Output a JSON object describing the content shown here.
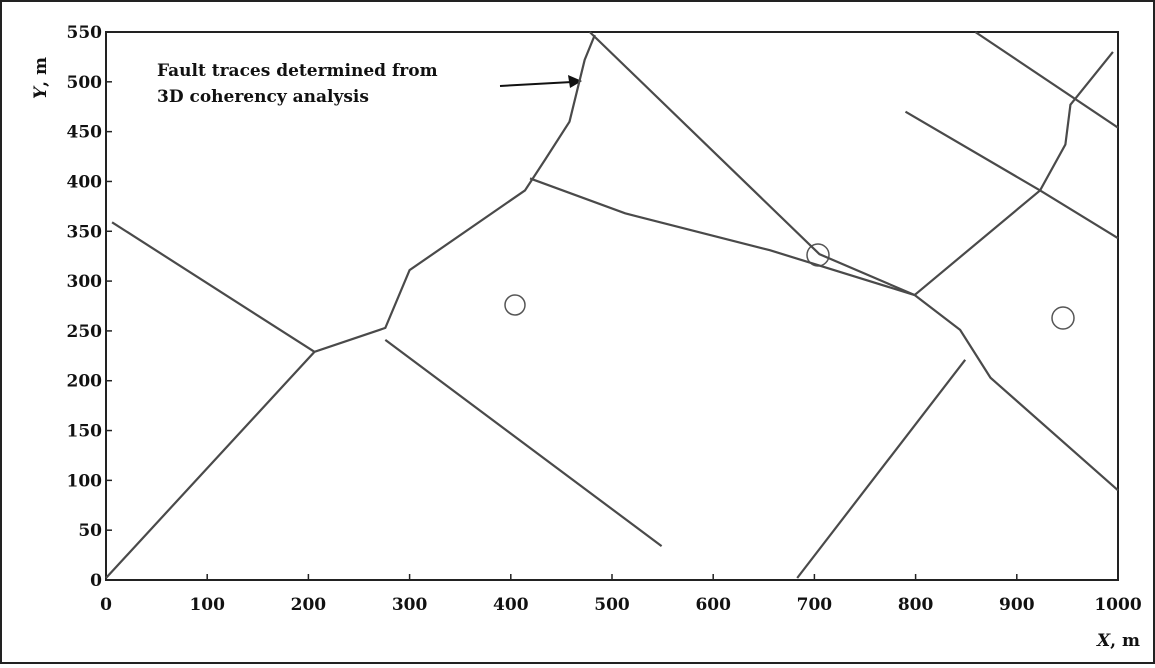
{
  "chart_data": {
    "type": "line",
    "annotation": [
      "Fault traces determined from",
      "3D coherency analysis"
    ],
    "xlabel": {
      "var": "X",
      "unit": ", m"
    },
    "ylabel": {
      "var": "Y",
      "unit": ", m"
    },
    "xlim": [
      0,
      1000
    ],
    "ylim": [
      0,
      550
    ],
    "xticks": [
      0,
      100,
      200,
      300,
      400,
      500,
      600,
      700,
      800,
      900,
      1000
    ],
    "yticks": [
      0,
      50,
      100,
      150,
      200,
      250,
      300,
      350,
      400,
      450,
      500,
      550
    ],
    "color": "#4a4a4a",
    "series": [
      {
        "x": [
          0,
          206,
          276,
          300,
          414,
          434,
          458,
          473,
          483
        ],
        "y": [
          2,
          229,
          253,
          311,
          391,
          422,
          460,
          522,
          547
        ]
      },
      {
        "x": [
          6,
          206
        ],
        "y": [
          359,
          229
        ]
      },
      {
        "x": [
          276,
          549
        ],
        "y": [
          241,
          34
        ]
      },
      {
        "x": [
          419,
          513,
          656,
          799,
          844,
          874,
          1000
        ],
        "y": [
          403,
          368,
          331,
          286,
          251,
          203,
          90
        ]
      },
      {
        "x": [
          478,
          705,
          799
        ],
        "y": [
          550,
          327,
          286
        ]
      },
      {
        "x": [
          790,
          923,
          1000
        ],
        "y": [
          470,
          391,
          343
        ]
      },
      {
        "x": [
          859,
          1000
        ],
        "y": [
          550,
          454
        ]
      },
      {
        "x": [
          683,
          849
        ],
        "y": [
          2,
          221
        ]
      },
      {
        "x": [
          799,
          923,
          948,
          953,
          995
        ],
        "y": [
          286,
          391,
          437,
          477,
          530
        ]
      }
    ]
  }
}
